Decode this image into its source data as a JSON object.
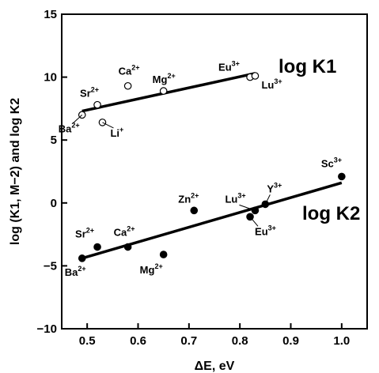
{
  "chart_data": {
    "type": "scatter",
    "xlabel": "ΔE, eV",
    "ylabel": "log (K1, M−2) and log K2",
    "xlim": [
      0.45,
      1.05
    ],
    "ylim": [
      -10,
      15
    ],
    "x_ticks": [
      "0.5",
      "0.6",
      "0.7",
      "0.8",
      "0.9",
      "1.0"
    ],
    "y_ticks": [
      "−10",
      "−5",
      "0",
      "5",
      "10",
      "15"
    ],
    "grid": false,
    "series": [
      {
        "name": "log K1",
        "marker": "open-circle",
        "points": [
          {
            "x": 0.49,
            "y": 7.0,
            "label": "Ba",
            "charge": "2+"
          },
          {
            "x": 0.52,
            "y": 7.8,
            "label": "Sr",
            "charge": "2+"
          },
          {
            "x": 0.53,
            "y": 6.4,
            "label": "Li",
            "charge": "+"
          },
          {
            "x": 0.58,
            "y": 9.3,
            "label": "Ca",
            "charge": "2+"
          },
          {
            "x": 0.65,
            "y": 8.9,
            "label": "Mg",
            "charge": "2+"
          },
          {
            "x": 0.82,
            "y": 10.0,
            "label": "Eu",
            "charge": "3+"
          },
          {
            "x": 0.83,
            "y": 10.1,
            "label": "Lu",
            "charge": "3+"
          }
        ],
        "fit": {
          "x": [
            0.49,
            0.83
          ],
          "y": [
            7.3,
            10.3
          ]
        }
      },
      {
        "name": "log K2",
        "marker": "filled-circle",
        "points": [
          {
            "x": 0.49,
            "y": -4.4,
            "label": "Ba",
            "charge": "2+"
          },
          {
            "x": 0.52,
            "y": -3.5,
            "label": "Sr",
            "charge": "2+"
          },
          {
            "x": 0.58,
            "y": -3.5,
            "label": "Ca",
            "charge": "2+"
          },
          {
            "x": 0.65,
            "y": -4.1,
            "label": "Mg",
            "charge": "2+"
          },
          {
            "x": 0.71,
            "y": -0.6,
            "label": "Zn",
            "charge": "2+"
          },
          {
            "x": 0.82,
            "y": -1.1,
            "label": "Eu",
            "charge": "3+"
          },
          {
            "x": 0.83,
            "y": -0.6,
            "label": "Lu",
            "charge": "3+"
          },
          {
            "x": 0.85,
            "y": -0.1,
            "label": "Y",
            "charge": "3+"
          },
          {
            "x": 1.0,
            "y": 2.1,
            "label": "Sc",
            "charge": "3+"
          }
        ],
        "fit": {
          "x": [
            0.49,
            1.0
          ],
          "y": [
            -4.4,
            1.6
          ]
        }
      }
    ]
  }
}
